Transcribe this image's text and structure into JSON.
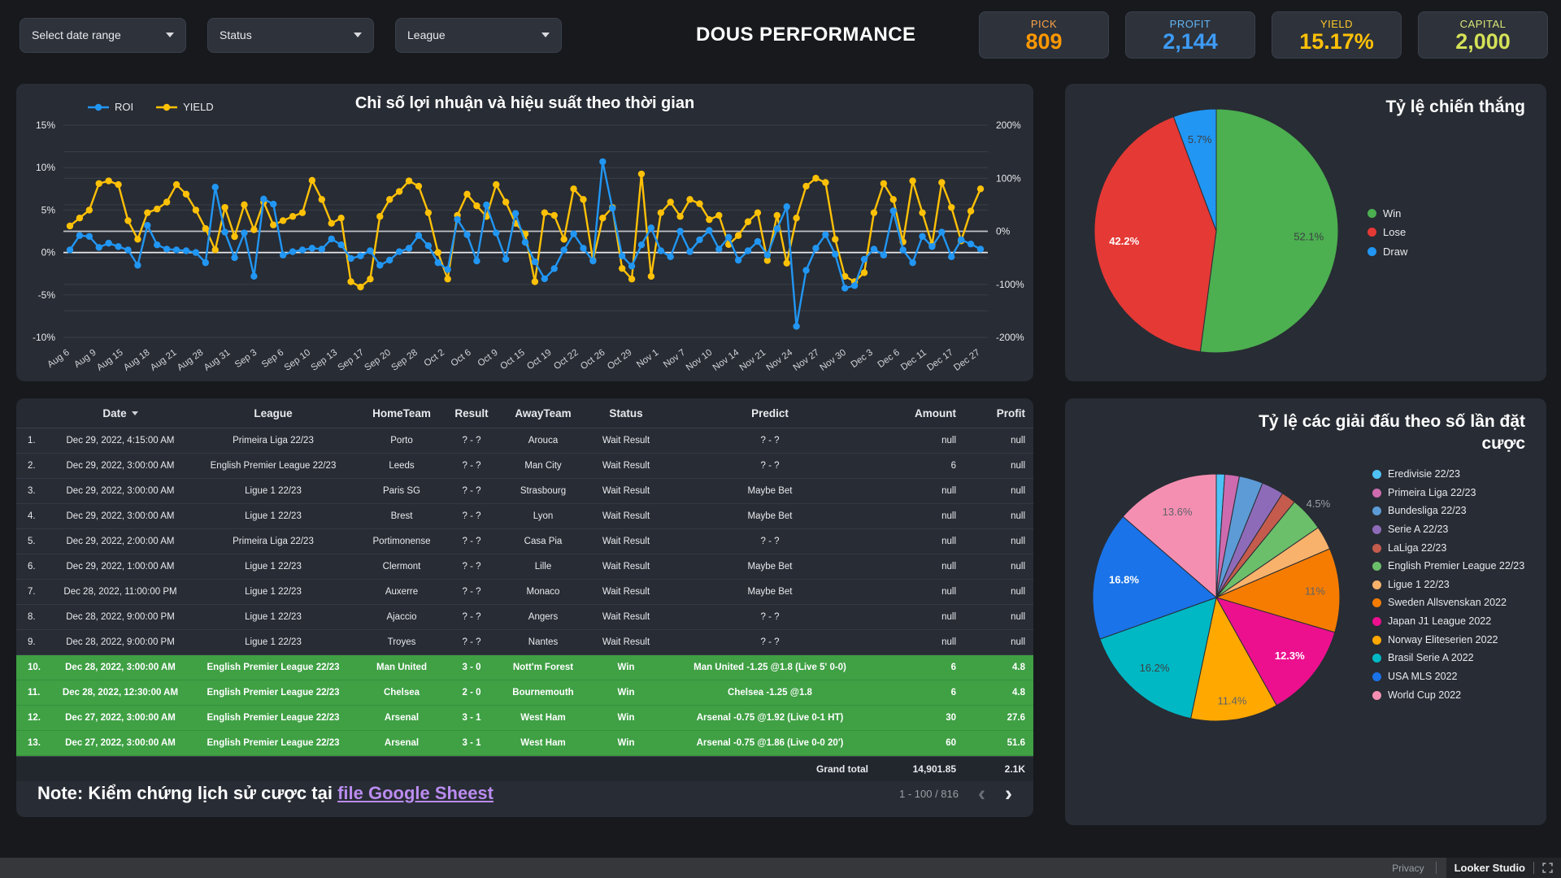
{
  "icons": {
    "prev": "‹",
    "next": "›"
  },
  "filters": [
    {
      "label": "Select date range"
    },
    {
      "label": "Status"
    },
    {
      "label": "League"
    }
  ],
  "header": {
    "title": "DOUS PERFORMANCE"
  },
  "kpis": [
    {
      "label": "PICK",
      "value": "809",
      "label_color": "#F9A44A",
      "value_color": "#FF9800"
    },
    {
      "label": "PROFIT",
      "value": "2,144",
      "label_color": "#64B5F6",
      "value_color": "#3D9BF5"
    },
    {
      "label": "YIELD",
      "value": "15.17%",
      "label_color": "#FFCA28",
      "value_color": "#FFC107"
    },
    {
      "label": "CAPITAL",
      "value": "2,000",
      "label_color": "#DCE775",
      "value_color": "#D4E157"
    }
  ],
  "chart_data": [
    {
      "id": "performance_timeseries",
      "type": "line",
      "title": "Chỉ số lợi nhuận và hiệu suất theo thời gian",
      "legend_position": "top-left",
      "grid": true,
      "x_ticks": [
        "Aug 6",
        "Aug 9",
        "Aug 15",
        "Aug 18",
        "Aug 21",
        "Aug 28",
        "Aug 31",
        "Sep 3",
        "Sep 6",
        "Sep 10",
        "Sep 13",
        "Sep 17",
        "Sep 20",
        "Sep 28",
        "Oct 2",
        "Oct 6",
        "Oct 9",
        "Oct 15",
        "Oct 19",
        "Oct 22",
        "Oct 26",
        "Oct 29",
        "Nov 1",
        "Nov 7",
        "Nov 10",
        "Nov 14",
        "Nov 21",
        "Nov 24",
        "Nov 27",
        "Nov 30",
        "Dec 3",
        "Dec 6",
        "Dec 11",
        "Dec 17",
        "Dec 27"
      ],
      "left_axis": {
        "min": -10,
        "max": 15,
        "tick_values": [
          15,
          10,
          5,
          0,
          -5,
          -10
        ],
        "tick_labels": [
          "15%",
          "10%",
          "5%",
          "0%",
          "-5%",
          "-10%"
        ],
        "zero_line": true
      },
      "right_axis": {
        "min": -200,
        "max": 200,
        "tick_values": [
          200,
          100,
          0,
          -100,
          -200
        ],
        "tick_labels": [
          "200%",
          "100%",
          "0%",
          "-100%",
          "-200%"
        ],
        "grid_step": 50,
        "zero_line": true
      },
      "series": [
        {
          "name": "ROI",
          "color": "#2196F3",
          "axis": "left",
          "values": [
            0.3,
            2.0,
            1.9,
            0.6,
            1.1,
            0.7,
            0.3,
            -1.5,
            3.2,
            0.9,
            0.4,
            0.3,
            0.2,
            0.0,
            -1.2,
            7.7,
            2.4,
            -0.6,
            2.3,
            -2.8,
            6.3,
            5.7,
            -0.3,
            0.1,
            0.3,
            0.5,
            0.4,
            1.6,
            0.9,
            -0.7,
            -0.4,
            0.2,
            -1.5,
            -0.9,
            0.1,
            0.5,
            2.0,
            0.8,
            -1.2,
            -2.0,
            3.9,
            2.1,
            -1.0,
            5.6,
            2.3,
            -0.8,
            4.6,
            1.2,
            -1.1,
            -3.1,
            -1.9,
            0.3,
            2.2,
            0.5,
            -1.0,
            10.7,
            5.2,
            -0.4,
            -1.6,
            0.9,
            2.9,
            0.2,
            -0.5,
            2.5,
            0.1,
            1.5,
            2.6,
            0.4,
            1.8,
            -0.9,
            0.2,
            1.3,
            -0.3,
            2.8,
            5.4,
            -8.7,
            -2.1,
            0.5,
            2.1,
            -0.2,
            -4.2,
            -3.9,
            -0.8,
            0.4,
            -0.3,
            4.9,
            0.3,
            -1.2,
            1.9,
            0.7,
            2.4,
            -0.5,
            1.5,
            1.0,
            0.4
          ]
        },
        {
          "name": "YIELD",
          "color": "#FFC107",
          "axis": "right",
          "values": [
            10,
            25,
            40,
            90,
            95,
            88,
            20,
            -15,
            35,
            42,
            55,
            88,
            70,
            40,
            5,
            -35,
            45,
            -10,
            50,
            3,
            55,
            12,
            20,
            28,
            35,
            96,
            60,
            15,
            25,
            -95,
            -105,
            -90,
            28,
            60,
            75,
            95,
            85,
            35,
            -40,
            -90,
            30,
            70,
            48,
            28,
            88,
            55,
            15,
            -5,
            -95,
            35,
            30,
            -15,
            80,
            60,
            -55,
            25,
            45,
            -70,
            -90,
            108,
            -85,
            35,
            55,
            28,
            60,
            52,
            22,
            30,
            -25,
            -8,
            18,
            35,
            -55,
            30,
            -60,
            25,
            85,
            100,
            92,
            -15,
            -85,
            -95,
            -78,
            35,
            90,
            60,
            -20,
            95,
            35,
            -25,
            92,
            45,
            -18,
            38,
            80
          ]
        }
      ]
    },
    {
      "id": "win_rate_pie",
      "type": "pie",
      "title": "Tỷ lệ chiến thắng",
      "legend_position": "right",
      "slices": [
        {
          "name": "Win",
          "value": 52.1,
          "color": "#4CAF50",
          "label": "52.1%",
          "label_color": "#3c4043"
        },
        {
          "name": "Lose",
          "value": 42.2,
          "color": "#E53935",
          "label": "42.2%",
          "label_color": "#ffffff"
        },
        {
          "name": "Draw",
          "value": 5.7,
          "color": "#2196F3",
          "label": "5.7%",
          "label_color": "#3c4043"
        }
      ]
    },
    {
      "id": "league_share_pie",
      "type": "pie",
      "title": "Tỷ lệ các giải đấu theo số lần đặt cược",
      "legend_position": "right",
      "slices": [
        {
          "name": "Eredivisie 22/23",
          "value": 1.1,
          "color": "#4FC3F7"
        },
        {
          "name": "Primeira Liga 22/23",
          "value": 1.9,
          "color": "#CE6BAF"
        },
        {
          "name": "Bundesliga 22/23",
          "value": 3.1,
          "color": "#5C9BD6"
        },
        {
          "name": "Serie A 22/23",
          "value": 2.9,
          "color": "#8E6BB8"
        },
        {
          "name": "LaLiga 22/23",
          "value": 1.9,
          "color": "#C45B4D"
        },
        {
          "name": "English Premier League 22/23",
          "value": 4.5,
          "color": "#6BBF6A",
          "label": "4.5%",
          "label_color": "#9aa0a6",
          "label_r": 1.12
        },
        {
          "name": "Ligue 1 22/23",
          "value": 3.1,
          "color": "#F9B26B"
        },
        {
          "name": "Sweden Allsvenskan 2022",
          "value": 11.0,
          "color": "#F57C00",
          "label": "11%",
          "label_color": "#5f6368",
          "label_r": 0.8
        },
        {
          "name": "Japan J1 League 2022",
          "value": 12.3,
          "color": "#EC108F",
          "label": "12.3%",
          "label_color": "#ffffff"
        },
        {
          "name": "Norway Eliteserien 2022",
          "value": 11.4,
          "color": "#FFA800",
          "label": "11.4%",
          "label_color": "#5f6368",
          "label_r": 0.85
        },
        {
          "name": "Brasil Serie A 2022",
          "value": 16.2,
          "color": "#00B8C4",
          "label": "16.2%",
          "label_color": "#3c4043"
        },
        {
          "name": "USA MLS 2022",
          "value": 16.8,
          "color": "#1A73E8",
          "label": "16.8%",
          "label_color": "#ffffff"
        },
        {
          "name": "World Cup 2022",
          "value": 13.6,
          "color": "#F48FB1",
          "label": "13.6%",
          "label_color": "#5f6368"
        }
      ]
    }
  ],
  "table": {
    "headers": [
      "",
      "Date",
      "League",
      "HomeTeam",
      "Result",
      "AwayTeam",
      "Status",
      "Predict",
      "Amount",
      "Profit"
    ],
    "rows": [
      {
        "no": "1.",
        "date": "Dec 29, 2022, 4:15:00 AM",
        "league": "Primeira Liga 22/23",
        "home": "Porto",
        "result": "? - ?",
        "away": "Arouca",
        "status": "Wait Result",
        "predict": "? - ?",
        "amount": "null",
        "profit": "null",
        "win": false
      },
      {
        "no": "2.",
        "date": "Dec 29, 2022, 3:00:00 AM",
        "league": "English Premier League 22/23",
        "home": "Leeds",
        "result": "? - ?",
        "away": "Man City",
        "status": "Wait Result",
        "predict": "? - ?",
        "amount": "6",
        "profit": "null",
        "win": false
      },
      {
        "no": "3.",
        "date": "Dec 29, 2022, 3:00:00 AM",
        "league": "Ligue 1 22/23",
        "home": "Paris SG",
        "result": "? - ?",
        "away": "Strasbourg",
        "status": "Wait Result",
        "predict": "Maybe Bet",
        "amount": "null",
        "profit": "null",
        "win": false
      },
      {
        "no": "4.",
        "date": "Dec 29, 2022, 3:00:00 AM",
        "league": "Ligue 1 22/23",
        "home": "Brest",
        "result": "? - ?",
        "away": "Lyon",
        "status": "Wait Result",
        "predict": "Maybe Bet",
        "amount": "null",
        "profit": "null",
        "win": false
      },
      {
        "no": "5.",
        "date": "Dec 29, 2022, 2:00:00 AM",
        "league": "Primeira Liga 22/23",
        "home": "Portimonense",
        "result": "? - ?",
        "away": "Casa Pia",
        "status": "Wait Result",
        "predict": "? - ?",
        "amount": "null",
        "profit": "null",
        "win": false
      },
      {
        "no": "6.",
        "date": "Dec 29, 2022, 1:00:00 AM",
        "league": "Ligue 1 22/23",
        "home": "Clermont",
        "result": "? - ?",
        "away": "Lille",
        "status": "Wait Result",
        "predict": "Maybe Bet",
        "amount": "null",
        "profit": "null",
        "win": false
      },
      {
        "no": "7.",
        "date": "Dec 28, 2022, 11:00:00 PM",
        "league": "Ligue 1 22/23",
        "home": "Auxerre",
        "result": "? - ?",
        "away": "Monaco",
        "status": "Wait Result",
        "predict": "Maybe Bet",
        "amount": "null",
        "profit": "null",
        "win": false
      },
      {
        "no": "8.",
        "date": "Dec 28, 2022, 9:00:00 PM",
        "league": "Ligue 1 22/23",
        "home": "Ajaccio",
        "result": "? - ?",
        "away": "Angers",
        "status": "Wait Result",
        "predict": "? - ?",
        "amount": "null",
        "profit": "null",
        "win": false
      },
      {
        "no": "9.",
        "date": "Dec 28, 2022, 9:00:00 PM",
        "league": "Ligue 1 22/23",
        "home": "Troyes",
        "result": "? - ?",
        "away": "Nantes",
        "status": "Wait Result",
        "predict": "? - ?",
        "amount": "null",
        "profit": "null",
        "win": false
      },
      {
        "no": "10.",
        "date": "Dec 28, 2022, 3:00:00 AM",
        "league": "English Premier League 22/23",
        "home": "Man United",
        "result": "3 - 0",
        "away": "Nott'm Forest",
        "status": "Win",
        "predict": "Man United -1.25 @1.8 (Live 5' 0-0)",
        "amount": "6",
        "profit": "4.8",
        "win": true
      },
      {
        "no": "11.",
        "date": "Dec 28, 2022, 12:30:00 AM",
        "league": "English Premier League 22/23",
        "home": "Chelsea",
        "result": "2 - 0",
        "away": "Bournemouth",
        "status": "Win",
        "predict": "Chelsea -1.25 @1.8",
        "amount": "6",
        "profit": "4.8",
        "win": true
      },
      {
        "no": "12.",
        "date": "Dec 27, 2022, 3:00:00 AM",
        "league": "English Premier League 22/23",
        "home": "Arsenal",
        "result": "3 - 1",
        "away": "West Ham",
        "status": "Win",
        "predict": "Arsenal -0.75 @1.92 (Live 0-1 HT)",
        "amount": "30",
        "profit": "27.6",
        "win": true
      },
      {
        "no": "13.",
        "date": "Dec 27, 2022, 3:00:00 AM",
        "league": "English Premier League 22/23",
        "home": "Arsenal",
        "result": "3 - 1",
        "away": "West Ham",
        "status": "Win",
        "predict": "Arsenal -0.75 @1.86 (Live 0-0 20')",
        "amount": "60",
        "profit": "51.6",
        "win": true
      }
    ],
    "grand_total": {
      "label": "Grand total",
      "amount": "14,901.85",
      "profit": "2.1K"
    },
    "pagination": {
      "range": "1 - 100 / 816"
    }
  },
  "note": {
    "prefix": "Note: Kiểm chứng lịch sử cược tại ",
    "link": "file Google Sheest"
  },
  "footer": {
    "privacy": "Privacy",
    "brand": "Looker Studio"
  }
}
